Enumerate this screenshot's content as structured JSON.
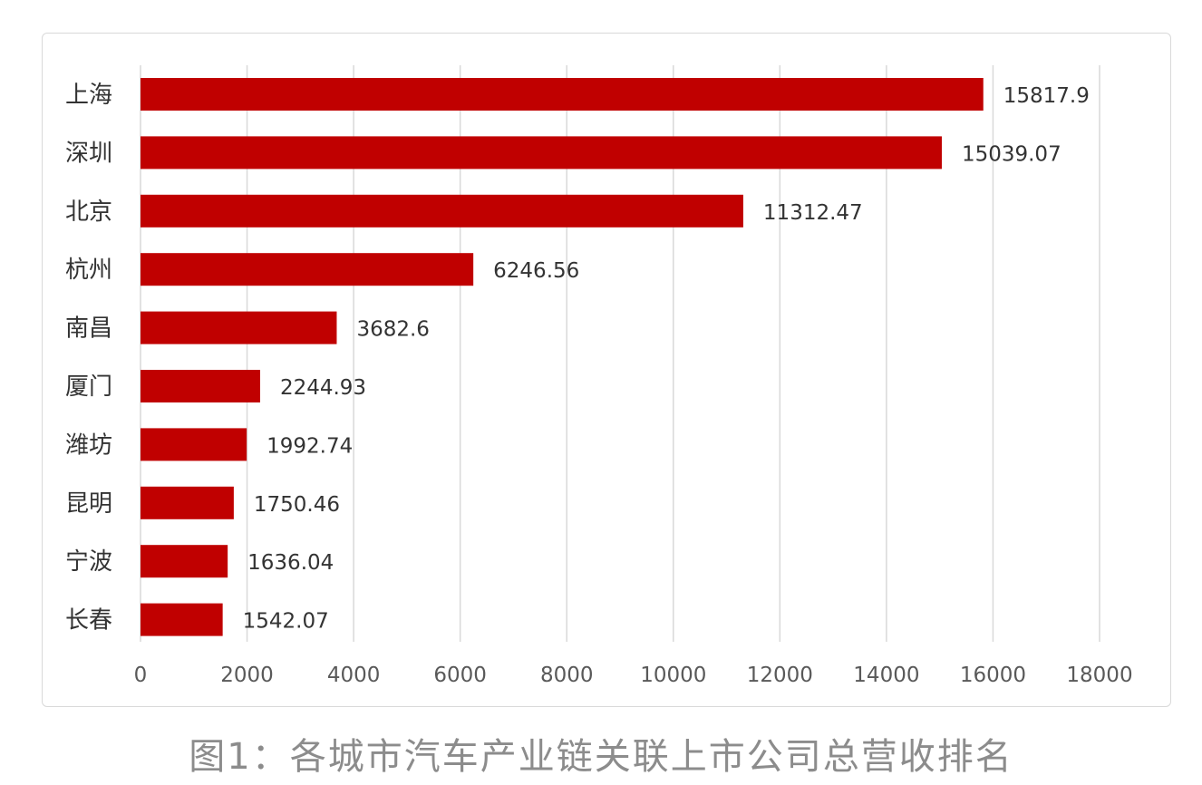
{
  "caption": "图1：各城市汽车产业链关联上市公司总营收排名",
  "chart_data": {
    "type": "bar",
    "orientation": "horizontal",
    "categories": [
      "上海",
      "深圳",
      "北京",
      "杭州",
      "南昌",
      "厦门",
      "潍坊",
      "昆明",
      "宁波",
      "长春"
    ],
    "values": [
      15817.9,
      15039.07,
      11312.47,
      6246.56,
      3682.6,
      2244.93,
      1992.74,
      1750.46,
      1636.04,
      1542.07
    ],
    "value_labels": [
      "15817.9",
      "15039.07",
      "11312.47",
      "6246.56",
      "3682.6",
      "2244.93",
      "1992.74",
      "1750.46",
      "1636.04",
      "1542.07"
    ],
    "xticks": [
      0,
      2000,
      4000,
      6000,
      8000,
      10000,
      12000,
      14000,
      16000,
      18000
    ],
    "xlim": [
      0,
      18000
    ],
    "grid": "vertical",
    "legend": "none",
    "title": "",
    "xlabel": "",
    "ylabel": "",
    "bar_color": "#c00000",
    "grid_color": "#d9d9d9"
  }
}
